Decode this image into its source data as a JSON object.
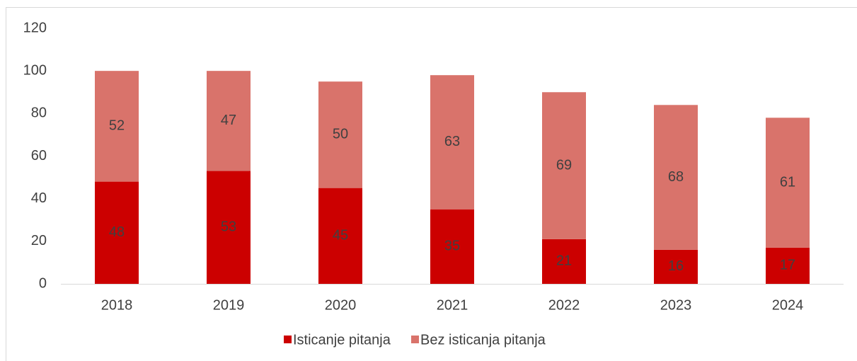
{
  "chart_data": {
    "type": "stacked_bar",
    "categories": [
      "2018",
      "2019",
      "2020",
      "2021",
      "2022",
      "2023",
      "2024"
    ],
    "series": [
      {
        "name": "Isticanje pitanja",
        "color": "#cc0000",
        "values": [
          48,
          53,
          45,
          35,
          21,
          16,
          17
        ]
      },
      {
        "name": "Bez isticanja pitanja",
        "color": "#d9736b",
        "values": [
          52,
          47,
          50,
          63,
          69,
          68,
          61
        ]
      }
    ],
    "ylim": [
      0,
      120
    ],
    "yticks": [
      0,
      20,
      40,
      60,
      80,
      100,
      120
    ],
    "grid": false,
    "legend": "bottom"
  }
}
